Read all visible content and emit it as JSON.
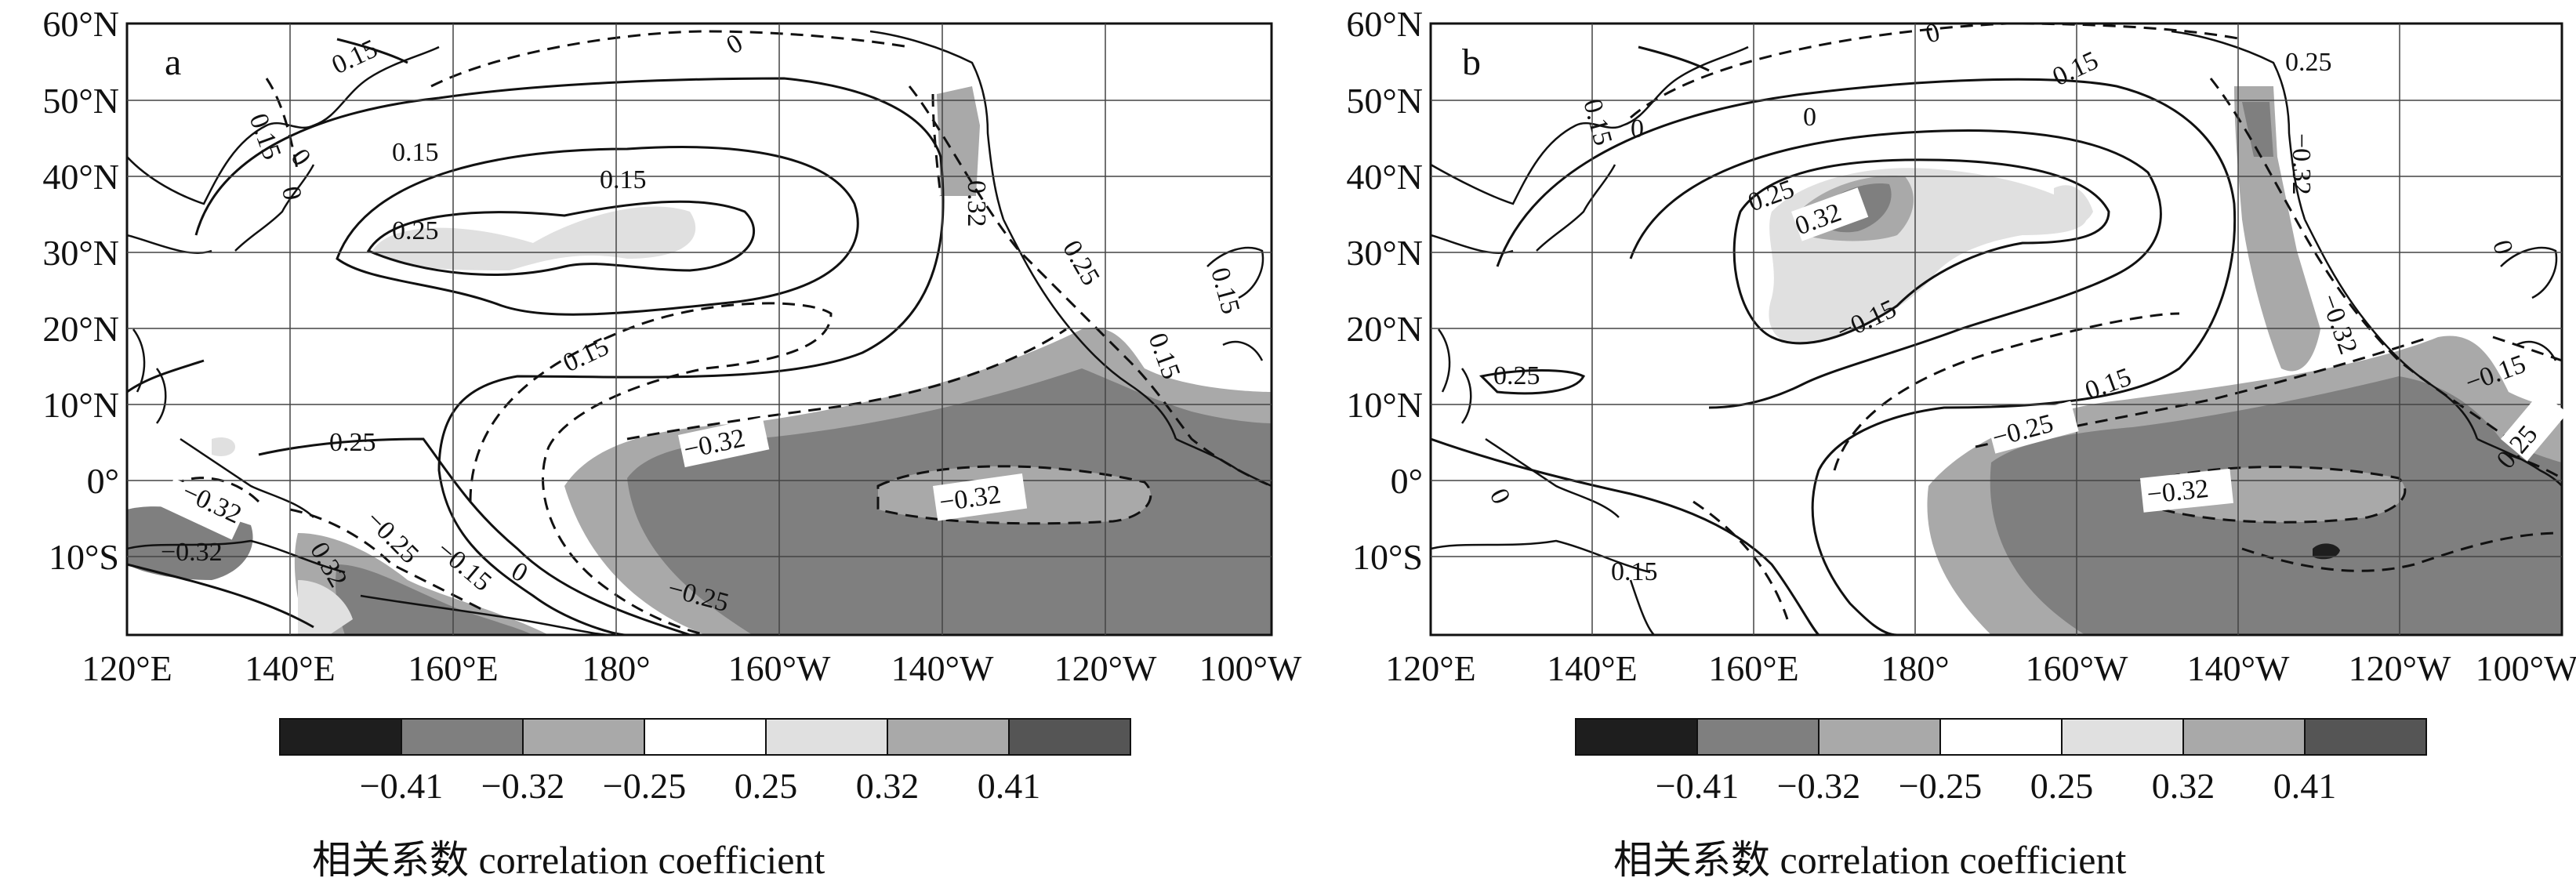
{
  "colorbar": {
    "colors": [
      "#1e1e1e",
      "#7f7f7f",
      "#a9a9a9",
      "#ffffff",
      "#e0e0e0",
      "#a9a9a9",
      "#555555"
    ],
    "labels": [
      "−0.41",
      "−0.32",
      "−0.25",
      "0.25",
      "0.32",
      "0.41"
    ],
    "title": "相关系数  correlation coefficient"
  },
  "axes": {
    "lat_labels": [
      "60°N",
      "50°N",
      "40°N",
      "30°N",
      "20°N",
      "10°N",
      "0°",
      "10°S"
    ],
    "lon_labels": [
      "120°E",
      "140°E",
      "160°E",
      "180°",
      "160°W",
      "140°W",
      "120°W",
      "100°W"
    ]
  },
  "panels": [
    {
      "letter": "a",
      "contour_labels": [
        "0.15",
        "0.15",
        "0.15",
        "0",
        "0.15",
        "0",
        "0.25",
        "0.15",
        "0.32",
        "0.25",
        "0.15",
        "0.15",
        "0.25",
        "−0.32",
        "−0.32",
        "−0.32",
        "−0.32",
        "0.32",
        "−0.25",
        "−0.15",
        "0",
        "−0.25",
        "0"
      ]
    },
    {
      "letter": "b",
      "contour_labels": [
        "0",
        "0.15",
        "0.15",
        "0",
        "0.25",
        "0",
        "0.32",
        "−0.32",
        "−0.32",
        "0.25",
        "−0.15",
        "0.25",
        "−0.25",
        "0.15",
        "−0.32",
        "−0.15",
        "0.25",
        "0",
        "0.15",
        "0"
      ]
    }
  ]
}
